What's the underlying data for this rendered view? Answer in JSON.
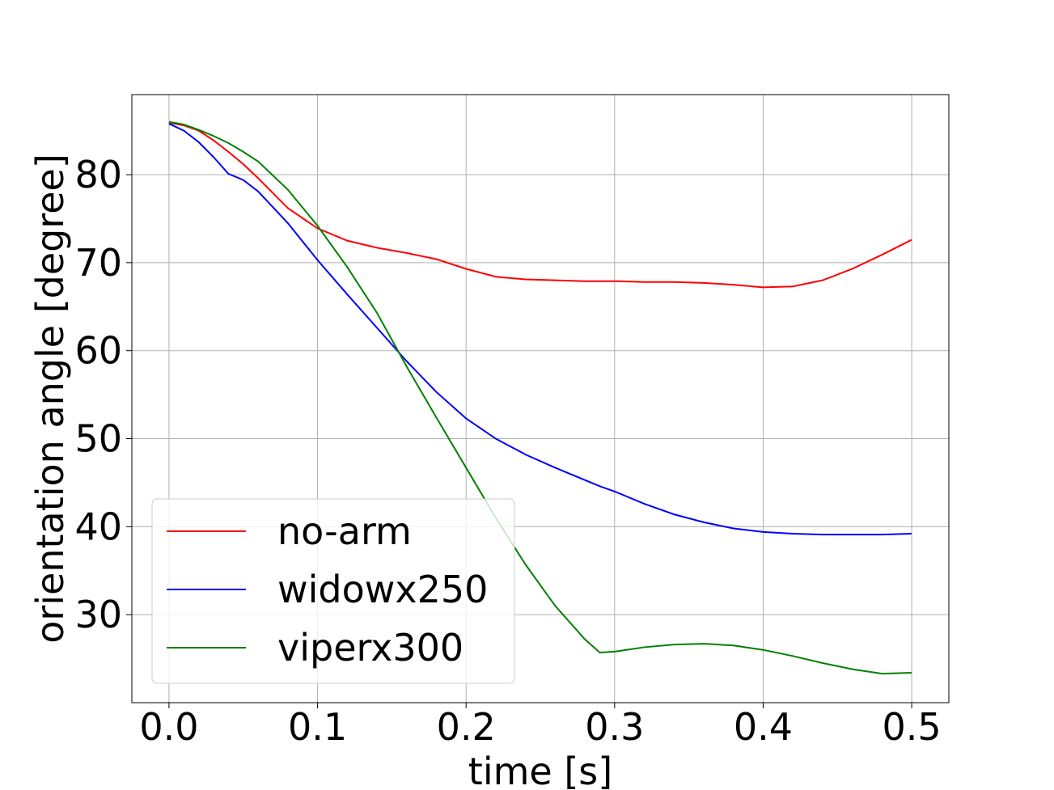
{
  "chart_data": {
    "type": "line",
    "xlabel": "time [s]",
    "ylabel": "orientation angle [degree]",
    "x": [
      0,
      0.01,
      0.02,
      0.03,
      0.04,
      0.05,
      0.06,
      0.08,
      0.1,
      0.12,
      0.14,
      0.16,
      0.18,
      0.2,
      0.22,
      0.24,
      0.26,
      0.28,
      0.29,
      0.3,
      0.32,
      0.34,
      0.36,
      0.38,
      0.4,
      0.42,
      0.44,
      0.46,
      0.48,
      0.5
    ],
    "series": [
      {
        "name": "no-arm",
        "color": "#ff0000",
        "values": [
          85.9,
          85.6,
          85.0,
          83.9,
          82.6,
          81.2,
          79.6,
          76.2,
          73.9,
          72.5,
          71.7,
          71.1,
          70.4,
          69.3,
          68.4,
          68.1,
          68.0,
          67.9,
          67.9,
          67.9,
          67.8,
          67.8,
          67.7,
          67.5,
          67.2,
          67.3,
          68.0,
          69.3,
          70.9,
          72.6
        ]
      },
      {
        "name": "widowx250",
        "color": "#0000ff",
        "values": [
          85.8,
          85.0,
          83.7,
          82.0,
          80.1,
          79.4,
          78.1,
          74.5,
          70.3,
          66.4,
          62.6,
          58.8,
          55.3,
          52.3,
          50.0,
          48.2,
          46.7,
          45.3,
          44.6,
          44.0,
          42.6,
          41.4,
          40.5,
          39.8,
          39.4,
          39.2,
          39.1,
          39.1,
          39.1,
          39.2
        ]
      },
      {
        "name": "viperx300",
        "color": "#008000",
        "values": [
          86.0,
          85.7,
          85.1,
          84.4,
          83.6,
          82.6,
          81.5,
          78.3,
          74.2,
          69.5,
          64.3,
          58.2,
          52.4,
          46.7,
          41.0,
          35.7,
          31.0,
          27.2,
          25.7,
          25.8,
          26.3,
          26.6,
          26.7,
          26.5,
          26.0,
          25.3,
          24.5,
          23.8,
          23.3,
          23.4
        ]
      }
    ],
    "xlim": [
      -0.025,
      0.525
    ],
    "xticks": [
      {
        "value": 0,
        "label": "0.0"
      },
      0.1,
      0.2,
      0.3,
      0.4,
      0.5
    ],
    "ylim": [
      20,
      89.1
    ],
    "yticks": [
      30,
      40,
      50,
      60,
      70,
      80
    ],
    "grid": true,
    "legend": "lower left"
  }
}
